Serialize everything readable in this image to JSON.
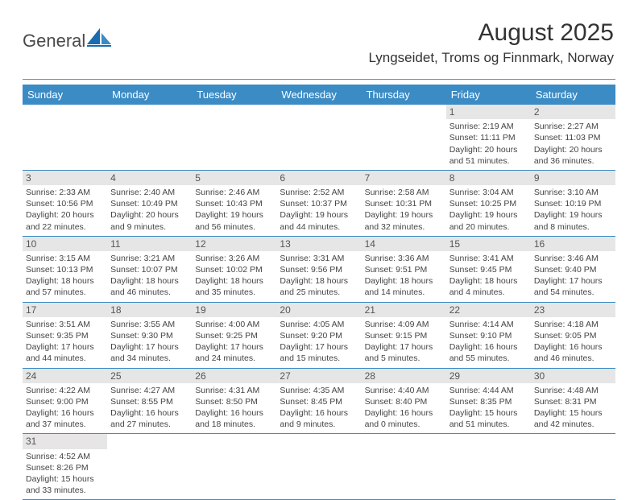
{
  "logo": {
    "text": "General",
    "brand_color": "#3b8bc4"
  },
  "title": "August 2025",
  "location": "Lyngseidet, Troms og Finnmark, Norway",
  "colors": {
    "header_bg": "#3b8bc4",
    "header_text": "#ffffff",
    "daynum_bg": "#e6e6e6",
    "border": "#3b8bc4",
    "text": "#444444"
  },
  "day_labels": [
    "Sunday",
    "Monday",
    "Tuesday",
    "Wednesday",
    "Thursday",
    "Friday",
    "Saturday"
  ],
  "weeks": [
    [
      null,
      null,
      null,
      null,
      null,
      {
        "n": "1",
        "sunrise": "Sunrise: 2:19 AM",
        "sunset": "Sunset: 11:11 PM",
        "day1": "Daylight: 20 hours",
        "day2": "and 51 minutes."
      },
      {
        "n": "2",
        "sunrise": "Sunrise: 2:27 AM",
        "sunset": "Sunset: 11:03 PM",
        "day1": "Daylight: 20 hours",
        "day2": "and 36 minutes."
      }
    ],
    [
      {
        "n": "3",
        "sunrise": "Sunrise: 2:33 AM",
        "sunset": "Sunset: 10:56 PM",
        "day1": "Daylight: 20 hours",
        "day2": "and 22 minutes."
      },
      {
        "n": "4",
        "sunrise": "Sunrise: 2:40 AM",
        "sunset": "Sunset: 10:49 PM",
        "day1": "Daylight: 20 hours",
        "day2": "and 9 minutes."
      },
      {
        "n": "5",
        "sunrise": "Sunrise: 2:46 AM",
        "sunset": "Sunset: 10:43 PM",
        "day1": "Daylight: 19 hours",
        "day2": "and 56 minutes."
      },
      {
        "n": "6",
        "sunrise": "Sunrise: 2:52 AM",
        "sunset": "Sunset: 10:37 PM",
        "day1": "Daylight: 19 hours",
        "day2": "and 44 minutes."
      },
      {
        "n": "7",
        "sunrise": "Sunrise: 2:58 AM",
        "sunset": "Sunset: 10:31 PM",
        "day1": "Daylight: 19 hours",
        "day2": "and 32 minutes."
      },
      {
        "n": "8",
        "sunrise": "Sunrise: 3:04 AM",
        "sunset": "Sunset: 10:25 PM",
        "day1": "Daylight: 19 hours",
        "day2": "and 20 minutes."
      },
      {
        "n": "9",
        "sunrise": "Sunrise: 3:10 AM",
        "sunset": "Sunset: 10:19 PM",
        "day1": "Daylight: 19 hours",
        "day2": "and 8 minutes."
      }
    ],
    [
      {
        "n": "10",
        "sunrise": "Sunrise: 3:15 AM",
        "sunset": "Sunset: 10:13 PM",
        "day1": "Daylight: 18 hours",
        "day2": "and 57 minutes."
      },
      {
        "n": "11",
        "sunrise": "Sunrise: 3:21 AM",
        "sunset": "Sunset: 10:07 PM",
        "day1": "Daylight: 18 hours",
        "day2": "and 46 minutes."
      },
      {
        "n": "12",
        "sunrise": "Sunrise: 3:26 AM",
        "sunset": "Sunset: 10:02 PM",
        "day1": "Daylight: 18 hours",
        "day2": "and 35 minutes."
      },
      {
        "n": "13",
        "sunrise": "Sunrise: 3:31 AM",
        "sunset": "Sunset: 9:56 PM",
        "day1": "Daylight: 18 hours",
        "day2": "and 25 minutes."
      },
      {
        "n": "14",
        "sunrise": "Sunrise: 3:36 AM",
        "sunset": "Sunset: 9:51 PM",
        "day1": "Daylight: 18 hours",
        "day2": "and 14 minutes."
      },
      {
        "n": "15",
        "sunrise": "Sunrise: 3:41 AM",
        "sunset": "Sunset: 9:45 PM",
        "day1": "Daylight: 18 hours",
        "day2": "and 4 minutes."
      },
      {
        "n": "16",
        "sunrise": "Sunrise: 3:46 AM",
        "sunset": "Sunset: 9:40 PM",
        "day1": "Daylight: 17 hours",
        "day2": "and 54 minutes."
      }
    ],
    [
      {
        "n": "17",
        "sunrise": "Sunrise: 3:51 AM",
        "sunset": "Sunset: 9:35 PM",
        "day1": "Daylight: 17 hours",
        "day2": "and 44 minutes."
      },
      {
        "n": "18",
        "sunrise": "Sunrise: 3:55 AM",
        "sunset": "Sunset: 9:30 PM",
        "day1": "Daylight: 17 hours",
        "day2": "and 34 minutes."
      },
      {
        "n": "19",
        "sunrise": "Sunrise: 4:00 AM",
        "sunset": "Sunset: 9:25 PM",
        "day1": "Daylight: 17 hours",
        "day2": "and 24 minutes."
      },
      {
        "n": "20",
        "sunrise": "Sunrise: 4:05 AM",
        "sunset": "Sunset: 9:20 PM",
        "day1": "Daylight: 17 hours",
        "day2": "and 15 minutes."
      },
      {
        "n": "21",
        "sunrise": "Sunrise: 4:09 AM",
        "sunset": "Sunset: 9:15 PM",
        "day1": "Daylight: 17 hours",
        "day2": "and 5 minutes."
      },
      {
        "n": "22",
        "sunrise": "Sunrise: 4:14 AM",
        "sunset": "Sunset: 9:10 PM",
        "day1": "Daylight: 16 hours",
        "day2": "and 55 minutes."
      },
      {
        "n": "23",
        "sunrise": "Sunrise: 4:18 AM",
        "sunset": "Sunset: 9:05 PM",
        "day1": "Daylight: 16 hours",
        "day2": "and 46 minutes."
      }
    ],
    [
      {
        "n": "24",
        "sunrise": "Sunrise: 4:22 AM",
        "sunset": "Sunset: 9:00 PM",
        "day1": "Daylight: 16 hours",
        "day2": "and 37 minutes."
      },
      {
        "n": "25",
        "sunrise": "Sunrise: 4:27 AM",
        "sunset": "Sunset: 8:55 PM",
        "day1": "Daylight: 16 hours",
        "day2": "and 27 minutes."
      },
      {
        "n": "26",
        "sunrise": "Sunrise: 4:31 AM",
        "sunset": "Sunset: 8:50 PM",
        "day1": "Daylight: 16 hours",
        "day2": "and 18 minutes."
      },
      {
        "n": "27",
        "sunrise": "Sunrise: 4:35 AM",
        "sunset": "Sunset: 8:45 PM",
        "day1": "Daylight: 16 hours",
        "day2": "and 9 minutes."
      },
      {
        "n": "28",
        "sunrise": "Sunrise: 4:40 AM",
        "sunset": "Sunset: 8:40 PM",
        "day1": "Daylight: 16 hours",
        "day2": "and 0 minutes."
      },
      {
        "n": "29",
        "sunrise": "Sunrise: 4:44 AM",
        "sunset": "Sunset: 8:35 PM",
        "day1": "Daylight: 15 hours",
        "day2": "and 51 minutes."
      },
      {
        "n": "30",
        "sunrise": "Sunrise: 4:48 AM",
        "sunset": "Sunset: 8:31 PM",
        "day1": "Daylight: 15 hours",
        "day2": "and 42 minutes."
      }
    ],
    [
      {
        "n": "31",
        "sunrise": "Sunrise: 4:52 AM",
        "sunset": "Sunset: 8:26 PM",
        "day1": "Daylight: 15 hours",
        "day2": "and 33 minutes."
      },
      null,
      null,
      null,
      null,
      null,
      null
    ]
  ]
}
